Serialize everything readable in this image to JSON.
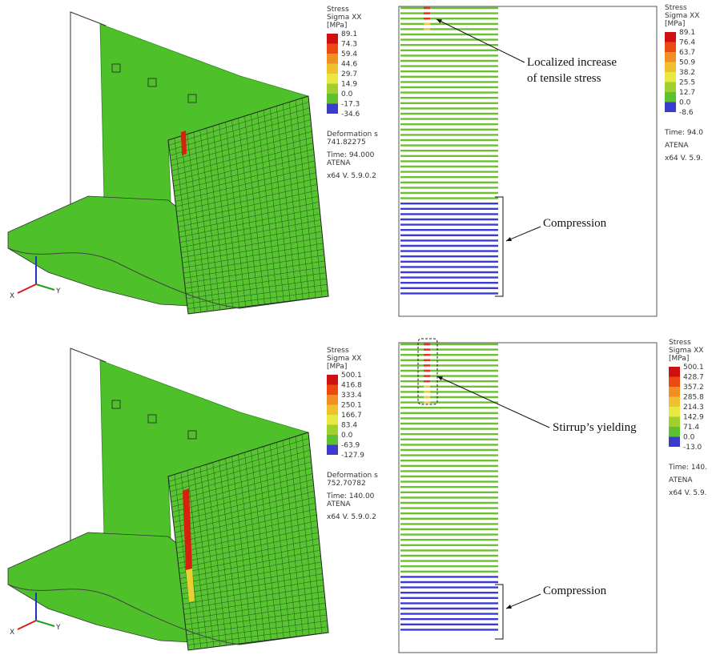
{
  "panels": [
    {
      "legend": {
        "title": [
          "Stress",
          "Sigma XX",
          "[MPa]"
        ],
        "labels": [
          "89.1",
          "74.3",
          "59.4",
          "44.6",
          "29.7",
          "14.9",
          "0.0",
          "-17.3",
          "-34.6"
        ]
      },
      "info": [
        "Deformation s",
        "741.82275",
        "Time:  94.000",
        "ATENA",
        "x64 V. 5.9.0.2"
      ],
      "axes": [
        "X",
        "Y"
      ]
    },
    {
      "legend": {
        "title": [
          "Stress",
          "Sigma XX",
          "[MPa]"
        ],
        "labels": [
          "89.1",
          "76.4",
          "63.7",
          "50.9",
          "38.2",
          "25.5",
          "12.7",
          "0.0",
          "-8.6"
        ]
      },
      "info": [
        "Time:  94.0",
        "ATENA",
        "x64 V. 5.9."
      ],
      "annotations": [
        [
          "Localized increase",
          "of tensile stress"
        ],
        [
          "Compression"
        ]
      ]
    },
    {
      "legend": {
        "title": [
          "Stress",
          "Sigma XX",
          "[MPa]"
        ],
        "labels": [
          "500.1",
          "416.8",
          "333.4",
          "250.1",
          "166.7",
          "83.4",
          "0.0",
          "-63.9",
          "-127.9"
        ]
      },
      "info": [
        "Deformation s",
        "752.70782",
        "Time:  140.00",
        "ATENA",
        "x64 V. 5.9.0.2"
      ],
      "axes": [
        "X",
        "Y"
      ]
    },
    {
      "legend": {
        "title": [
          "Stress",
          "Sigma XX",
          "[MPa]"
        ],
        "labels": [
          "500.1",
          "428.7",
          "357.2",
          "285.8",
          "214.3",
          "142.9",
          "71.4",
          "0.0",
          "-13.0"
        ]
      },
      "info": [
        "Time:  140.",
        "ATENA",
        "x64 V. 5.9."
      ],
      "annotations": [
        [
          "Stirrup’s yielding"
        ],
        [
          "Compression"
        ]
      ]
    }
  ]
}
